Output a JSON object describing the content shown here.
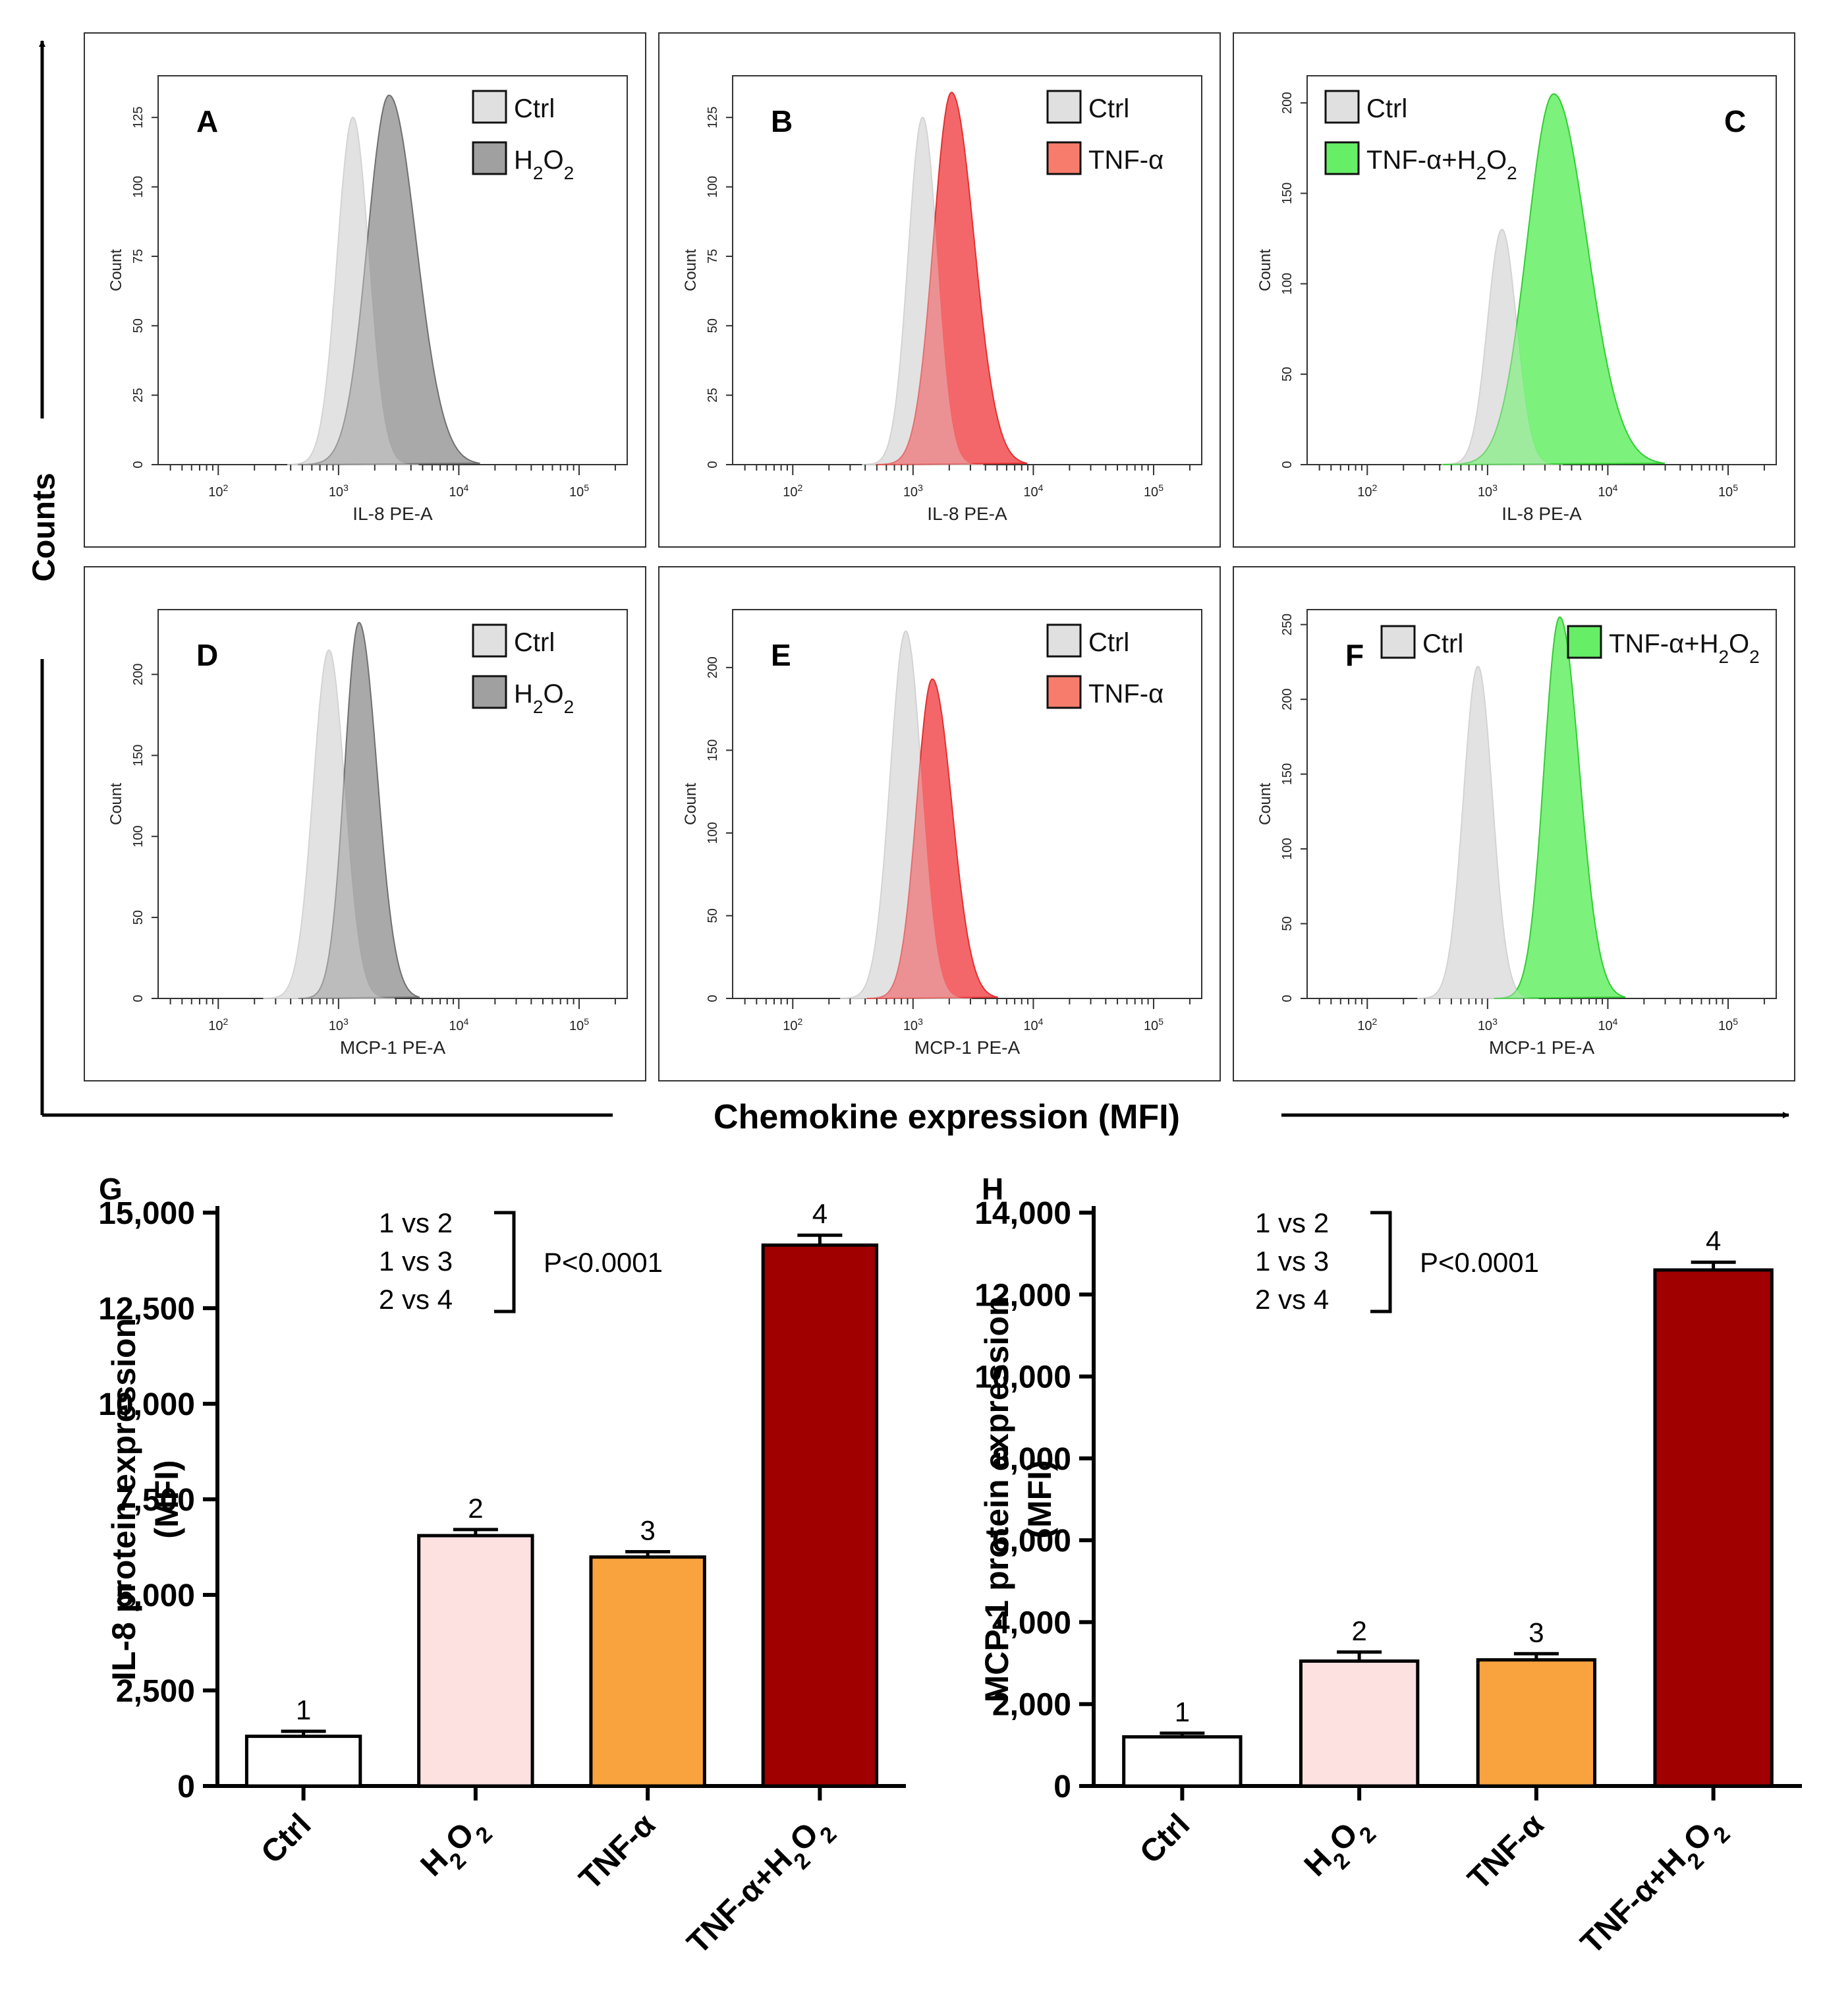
{
  "figure": {
    "y_axis_title": "Counts",
    "x_axis_title": "Chemokine expression (MFI)"
  },
  "histogram_common": {
    "count_label": "Count",
    "x_tick_labels": [
      "10",
      "10",
      "10",
      "10"
    ],
    "x_tick_exponents": [
      "2",
      "3",
      "4",
      "5"
    ]
  },
  "panels": [
    {
      "letter": "A",
      "xlabel": "IL-8 PE-A",
      "y_ticks": [
        0,
        25,
        50,
        75,
        100,
        125
      ],
      "y_max": 140,
      "legend": [
        {
          "label": "Ctrl",
          "swatch": "#e0e0e0"
        },
        {
          "label": "H2O2",
          "swatch": "#a0a0a0"
        }
      ],
      "fill": "#a0a0a0",
      "edge": "#707070",
      "ctrl": {
        "peak_log": 3.12,
        "peak_count": 125,
        "sigma": 0.13
      },
      "treat": {
        "peak_log": 3.42,
        "peak_count": 133,
        "sigma": 0.18
      }
    },
    {
      "letter": "B",
      "xlabel": "IL-8 PE-A",
      "y_ticks": [
        0,
        25,
        50,
        75,
        100,
        125
      ],
      "y_max": 140,
      "legend": [
        {
          "label": "Ctrl",
          "swatch": "#e0e0e0"
        },
        {
          "label": "TNF-α",
          "swatch": "#f77c6c"
        }
      ],
      "fill": "#f2575a",
      "edge": "#e23030",
      "ctrl": {
        "peak_log": 3.08,
        "peak_count": 125,
        "sigma": 0.12
      },
      "treat": {
        "peak_log": 3.32,
        "peak_count": 134,
        "sigma": 0.15
      }
    },
    {
      "letter": "C",
      "xlabel": "IL-8 PE-A",
      "y_ticks": [
        0,
        50,
        100,
        150,
        200
      ],
      "y_max": 215,
      "legend": [
        {
          "label": "Ctrl",
          "swatch": "#e0e0e0"
        },
        {
          "label": "TNF-α+H2O2",
          "swatch": "#66ee66"
        }
      ],
      "fill": "#6ef06e",
      "edge": "#33cc33",
      "ctrl": {
        "peak_log": 3.12,
        "peak_count": 130,
        "sigma": 0.12
      },
      "treat": {
        "peak_log": 3.55,
        "peak_count": 205,
        "sigma": 0.22
      }
    },
    {
      "letter": "D",
      "xlabel": "MCP-1 PE-A",
      "y_ticks": [
        0,
        50,
        100,
        150,
        200
      ],
      "y_max": 240,
      "legend": [
        {
          "label": "Ctrl",
          "swatch": "#e0e0e0"
        },
        {
          "label": "H2O2",
          "swatch": "#a0a0a0"
        }
      ],
      "fill": "#a0a0a0",
      "edge": "#707070",
      "ctrl": {
        "peak_log": 2.92,
        "peak_count": 215,
        "sigma": 0.13
      },
      "treat": {
        "peak_log": 3.17,
        "peak_count": 232,
        "sigma": 0.12
      }
    },
    {
      "letter": "E",
      "xlabel": "MCP-1 PE-A",
      "y_ticks": [
        0,
        50,
        100,
        150,
        200
      ],
      "y_max": 235,
      "legend": [
        {
          "label": "Ctrl",
          "swatch": "#e0e0e0"
        },
        {
          "label": "TNF-α",
          "swatch": "#f77c6c"
        }
      ],
      "fill": "#f2575a",
      "edge": "#e23030",
      "ctrl": {
        "peak_log": 2.94,
        "peak_count": 222,
        "sigma": 0.13
      },
      "treat": {
        "peak_log": 3.16,
        "peak_count": 193,
        "sigma": 0.13
      }
    },
    {
      "letter": "F",
      "xlabel": "MCP-1 PE-A",
      "y_ticks": [
        0,
        50,
        100,
        150,
        200,
        250
      ],
      "y_max": 260,
      "legend": [
        {
          "label": "Ctrl",
          "swatch": "#e0e0e0"
        },
        {
          "label": "TNF-α+H2O2",
          "swatch": "#66ee66"
        }
      ],
      "fill": "#6ef06e",
      "edge": "#33cc33",
      "ctrl": {
        "peak_log": 2.92,
        "peak_count": 222,
        "sigma": 0.12
      },
      "treat": {
        "peak_log": 3.6,
        "peak_count": 255,
        "sigma": 0.13
      }
    }
  ],
  "chart_data": [
    {
      "type": "bar",
      "panel": "G",
      "title": "",
      "ylabel": "IL-8 protein expression (MFI)",
      "ylabel_lines": [
        "IL-8 protein expression",
        "(MFI)"
      ],
      "xlabel": "",
      "categories": [
        "Ctrl",
        "H2O2",
        "TNF-α",
        "TNF-α+H2O2"
      ],
      "values": [
        1300,
        6550,
        5990,
        14150
      ],
      "errors": [
        130,
        160,
        140,
        260
      ],
      "bar_numbers": [
        "1",
        "2",
        "3",
        "4"
      ],
      "colors": [
        "#ffffff",
        "#fde0e0",
        "#f9a33f",
        "#a00000"
      ],
      "ylim": [
        0,
        15000
      ],
      "y_ticks": [
        0,
        2500,
        5000,
        7500,
        10000,
        12500,
        15000
      ],
      "y_tick_labels": [
        "0",
        "2,500",
        "5,000",
        "7,500",
        "10,000",
        "12,500",
        "15,000"
      ],
      "comparisons": [
        "1 vs 2",
        "1 vs 3",
        "2 vs 4"
      ],
      "pvalue": "P<0.0001"
    },
    {
      "type": "bar",
      "panel": "H",
      "title": "",
      "ylabel": "MCP-1 protein expression (MFI)",
      "ylabel_lines": [
        "MCP-1 protein expression",
        "(MFI)"
      ],
      "xlabel": "",
      "categories": [
        "Ctrl",
        "H2O2",
        "TNF-α",
        "TNF-α+H2O2"
      ],
      "values": [
        1200,
        3050,
        3080,
        12600
      ],
      "errors": [
        90,
        220,
        150,
        190
      ],
      "bar_numbers": [
        "1",
        "2",
        "3",
        "4"
      ],
      "colors": [
        "#ffffff",
        "#fde0e0",
        "#f9a33f",
        "#a00000"
      ],
      "ylim": [
        0,
        14000
      ],
      "y_ticks": [
        0,
        2000,
        4000,
        6000,
        8000,
        10000,
        12000,
        14000
      ],
      "y_tick_labels": [
        "0",
        "2,000",
        "4,000",
        "6,000",
        "8,000",
        "10,000",
        "12,000",
        "14,000"
      ],
      "comparisons": [
        "1 vs 2",
        "1 vs 3",
        "2 vs 4"
      ],
      "pvalue": "P<0.0001"
    }
  ]
}
